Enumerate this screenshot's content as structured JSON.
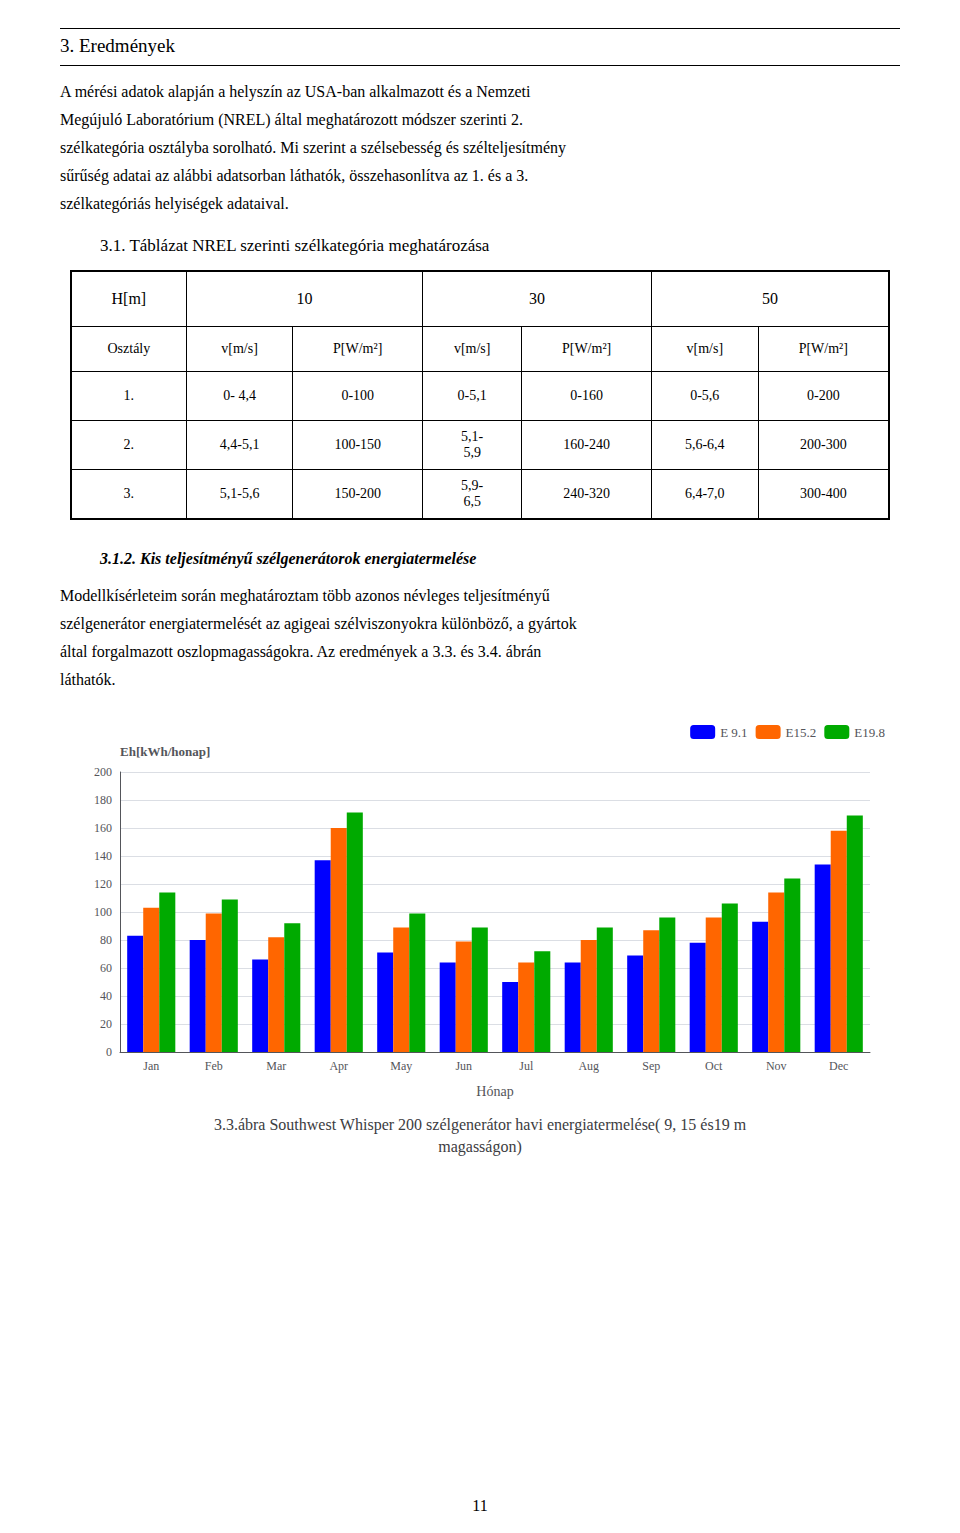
{
  "heading": "3. Eredmények",
  "paragraphs": [
    "A mérési adatok alapján a helyszín az USA-ban alkalmazott és a Nemzeti\nMegújuló Laboratórium (NREL) által meghatározott módszer szerinti 2.\nszélkategória osztályba sorolható. Mi szerint a szélsebesség és szélteljesítmény\nsűrűség adatai az alábbi adatsorban láthatók, összehasonlítva az 1. és a 3.\nszélkategóriás helyiségek adataival.",
    "Modellkísérleteim során meghatároztam több azonos névleges teljesítményű\nszélgenerátor energiatermelését az agigeai szélviszonyokra különböző, a gyártok\náltal forgalmazott oszlopmagasságokra. Az eredmények a 3.3. és 3.4. ábrán\nláthatók."
  ],
  "table": {
    "title": "3.1. Táblázat NREL szerinti szélkategória meghatározása",
    "header_row1": [
      "H[m]",
      "10",
      "30",
      "50"
    ],
    "header_row2": [
      "Osztály",
      "v[m/s]",
      "P[W/m²]",
      "v[m/s]",
      "P[W/m²]",
      "v[m/s]",
      "P[W/m²]"
    ],
    "rows": [
      [
        "1.",
        "0- 4,4",
        "0-100",
        "0-5,1",
        "0-160",
        "0-5,6",
        "0-200"
      ],
      [
        "2.",
        "4,4-5,1",
        "100-150",
        "5,1-\n5,9",
        "160-240",
        "5,6-6,4",
        "200-300"
      ],
      [
        "3.",
        "5,1-5,6",
        "150-200",
        "5,9-\n6,5",
        "240-320",
        "6,4-7,0",
        "300-400"
      ]
    ]
  },
  "section_title": "3.1.2. Kis teljesítményű szélgenerátorok energiatermelése",
  "page_number": "11",
  "chart_data": {
    "type": "bar",
    "title": "3.3.ábra Southwest Whisper 200 szélgenerátor havi energiatermelése( 9, 15 és19 m\nmagasságon)",
    "x_label": "Hónap",
    "y_label": "Eh[kWh/honap]",
    "categories": [
      "Jan",
      "Feb",
      "Mar",
      "Apr",
      "May",
      "Jun",
      "Jul",
      "Aug",
      "Sep",
      "Oct",
      "Nov",
      "Dec"
    ],
    "series": [
      {
        "name": "E 9.1",
        "color": "#0000ff",
        "values": [
          83,
          80,
          66,
          137,
          71,
          64,
          50,
          64,
          69,
          78,
          93,
          134
        ]
      },
      {
        "name": "E15.2",
        "color": "#ff6600",
        "values": [
          103,
          99,
          82,
          160,
          89,
          79,
          64,
          80,
          87,
          96,
          114,
          158
        ]
      },
      {
        "name": "E19.8",
        "color": "#00aa00",
        "values": [
          114,
          109,
          92,
          171,
          99,
          89,
          72,
          89,
          96,
          106,
          124,
          169
        ]
      }
    ],
    "ylim": [
      0,
      200
    ],
    "yticks": [
      0,
      20,
      40,
      60,
      80,
      100,
      120,
      140,
      160,
      180,
      200
    ],
    "grid": true,
    "legend": "upper right"
  }
}
